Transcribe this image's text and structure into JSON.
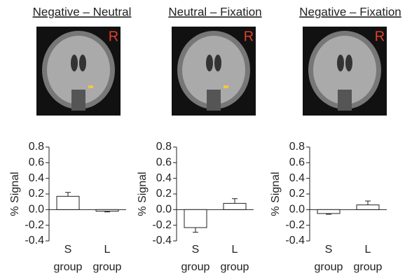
{
  "chart_data": [
    {
      "type": "bar",
      "title": "Negative – Neutral",
      "annotation": "R",
      "ylabel": "% Signal",
      "categories": [
        "S group",
        "L group"
      ],
      "values": [
        0.17,
        -0.02
      ],
      "errors": [
        0.05,
        0.01
      ],
      "color": "#ffffff",
      "ylim": [
        -0.4,
        0.8
      ],
      "yticks": [
        0.8,
        0.6,
        0.4,
        0.2,
        {
          "value": 0,
          "label": "0.0"
        },
        -0.2,
        -0.4
      ]
    },
    {
      "type": "bar",
      "title": "Neutral – Fixation",
      "annotation": "R",
      "ylabel": "% Signal",
      "categories": [
        "S group",
        "L group"
      ],
      "values": [
        -0.23,
        0.08
      ],
      "errors": [
        0.06,
        0.06
      ],
      "color": "#ffffff",
      "ylim": [
        -0.4,
        0.8
      ],
      "yticks": [
        0.8,
        0.6,
        0.4,
        0.2,
        {
          "value": 0,
          "label": "0.0"
        },
        -0.2,
        -0.4
      ]
    },
    {
      "type": "bar",
      "title": "Negative – Fixation",
      "annotation": "R",
      "ylabel": "% Signal",
      "categories": [
        "S group",
        "L group"
      ],
      "values": [
        -0.05,
        0.06
      ],
      "errors": [
        0.01,
        0.05
      ],
      "color": "#ffffff",
      "ylim": [
        -0.4,
        0.8
      ],
      "yticks": [
        0.8,
        0.6,
        0.4,
        0.2,
        {
          "value": 0,
          "label": "0.0"
        },
        -0.2,
        -0.4
      ]
    }
  ]
}
